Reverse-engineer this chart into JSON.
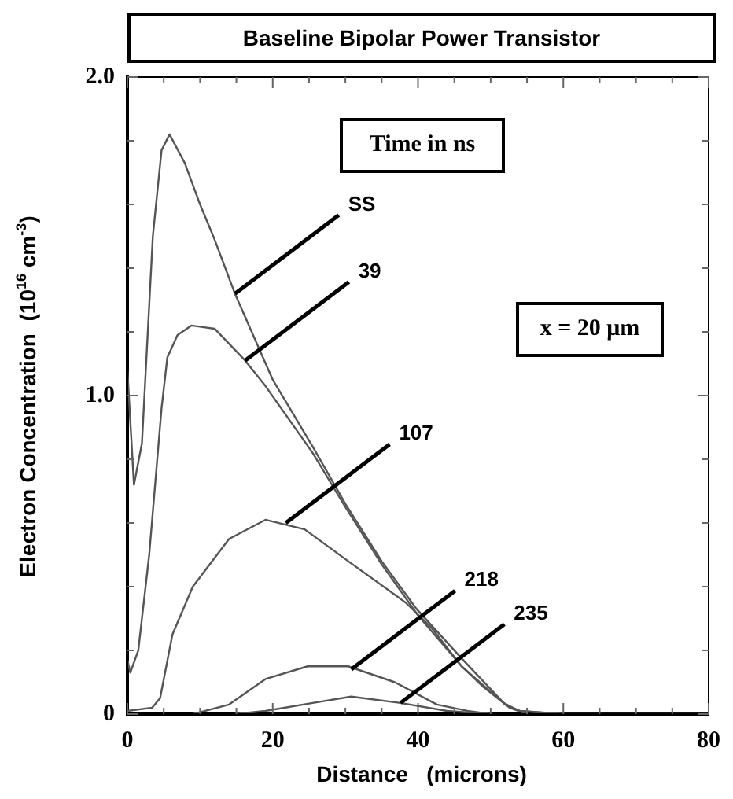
{
  "chart_data": {
    "type": "line",
    "title": "Baseline Bipolar Power Transistor",
    "xlabel": "Distance   (microns)",
    "ylabel": "Electron Concentration  (10$^{16}$ cm$^{-3}$)",
    "xlim": [
      0,
      80
    ],
    "ylim": [
      0,
      2
    ],
    "xticks": [
      0,
      {
        "value": 5,
        "label": null
      },
      {
        "value": 10,
        "label": null
      },
      {
        "value": 15,
        "label": null
      },
      20,
      {
        "value": 25,
        "label": null
      },
      {
        "value": 30,
        "label": null
      },
      {
        "value": 35,
        "label": null
      },
      40,
      {
        "value": 45,
        "label": null
      },
      {
        "value": 50,
        "label": null
      },
      {
        "value": 55,
        "label": null
      },
      60,
      {
        "value": 65,
        "label": null
      },
      {
        "value": 70,
        "label": null
      },
      {
        "value": 75,
        "label": null
      },
      80
    ],
    "yticks": [
      0,
      {
        "value": 0.2,
        "label": null
      },
      {
        "value": 0.4,
        "label": null
      },
      {
        "value": 0.6,
        "label": null
      },
      {
        "value": 0.8,
        "label": null
      },
      {
        "value": 1,
        "label": "1.0"
      },
      {
        "value": 1.2,
        "label": null
      },
      {
        "value": 1.4,
        "label": null
      },
      {
        "value": 1.6,
        "label": null
      },
      {
        "value": 1.8,
        "label": null
      },
      {
        "value": 2,
        "label": "2.0"
      }
    ],
    "grid": false,
    "legend": false,
    "marker": "none",
    "line_style": "solid",
    "series": [
      {
        "color": "#555555",
        "x": [
          0,
          0.9,
          2,
          3.5,
          4.7,
          5.8,
          7.9,
          10,
          12,
          14.8,
          20,
          25.5,
          30,
          35,
          39.8,
          46.2,
          51.8,
          53.9,
          60,
          80
        ],
        "values": [
          1.08,
          0.72,
          0.85,
          1.5,
          1.77,
          1.82,
          1.73,
          1.6,
          1.49,
          1.32,
          1.05,
          0.84,
          0.66,
          0.48,
          0.33,
          0.17,
          0.035,
          0.01,
          0,
          0
        ]
      },
      {
        "color": "#555555",
        "x": [
          0,
          0.4,
          1.5,
          3,
          4.7,
          5.5,
          6.9,
          8.8,
          12,
          16.2,
          19,
          25.5,
          30,
          35,
          40,
          46,
          52,
          54,
          60
        ],
        "values": [
          0.17,
          0.13,
          0.2,
          0.5,
          0.96,
          1.12,
          1.19,
          1.22,
          1.21,
          1.11,
          1.03,
          0.82,
          0.65,
          0.47,
          0.31,
          0.15,
          0.03,
          0.01,
          0
        ]
      },
      {
        "color": "#555555",
        "x": [
          0,
          3.4,
          4.5,
          6.2,
          9,
          14,
          19,
          24.4,
          30.4,
          38.3,
          41.9,
          46,
          49,
          52.6,
          55
        ],
        "values": [
          0.01,
          0.02,
          0.05,
          0.25,
          0.4,
          0.55,
          0.61,
          0.58,
          0.48,
          0.35,
          0.27,
          0.15,
          0.085,
          0.02,
          0
        ]
      },
      {
        "color": "#555555",
        "x": [
          9,
          14,
          19,
          24.8,
          30.4,
          36.8,
          42.6,
          46.8,
          50
        ],
        "values": [
          0,
          0.03,
          0.11,
          0.15,
          0.15,
          0.1,
          0.03,
          0.01,
          0
        ]
      },
      {
        "color": "#555555",
        "x": [
          14.8,
          19,
          25.5,
          30.8,
          37.6,
          44,
          50
        ],
        "values": [
          0,
          0.01,
          0.035,
          0.055,
          0.035,
          0.01,
          0
        ]
      }
    ],
    "annotations": [
      {
        "text": "SS",
        "x": 14.8,
        "y": 1.32
      },
      {
        "text": "39",
        "x": 16.2,
        "y": 1.11
      },
      {
        "text": "107",
        "x": 21.8,
        "y": 0.6
      },
      {
        "text": "218",
        "x": 30.8,
        "y": 0.14
      },
      {
        "text": "235",
        "x": 37.6,
        "y": 0.035
      },
      "Time in ns",
      "x = 20 μm"
    ]
  }
}
